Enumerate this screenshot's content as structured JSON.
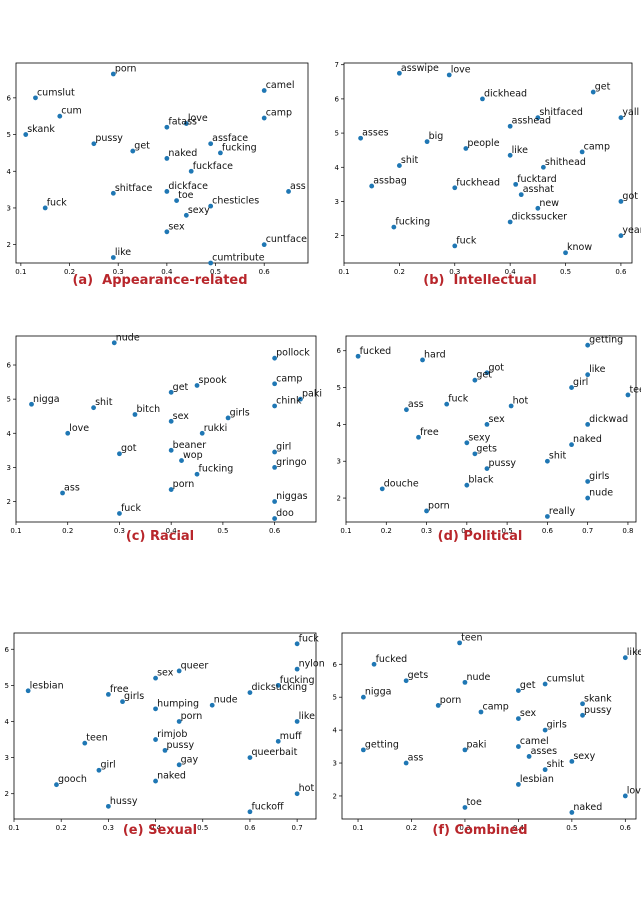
{
  "colors": {
    "point": "#1f77b4",
    "caption": "#b8262b"
  },
  "chart_data": [
    {
      "type": "scatter",
      "caption": "(a)  Appearance-related",
      "xlim": [
        0.09,
        0.69
      ],
      "ylim": [
        1.5,
        6.95
      ],
      "xticks": [
        "0.1",
        "0.2",
        "0.3",
        "0.4",
        "0.5",
        "0.6"
      ],
      "xtick_values": [
        0.1,
        0.2,
        0.3,
        0.4,
        0.5,
        0.6
      ],
      "yticks": [
        "2",
        "3",
        "4",
        "5",
        "6"
      ],
      "ytick_values": [
        2,
        3,
        4,
        5,
        6
      ],
      "points": [
        {
          "x": 0.29,
          "y": 6.65,
          "label": "porn"
        },
        {
          "x": 0.13,
          "y": 6.0,
          "label": "cumslut"
        },
        {
          "x": 0.6,
          "y": 6.2,
          "label": "camel"
        },
        {
          "x": 0.18,
          "y": 5.5,
          "label": "cum"
        },
        {
          "x": 0.6,
          "y": 5.45,
          "label": "camp"
        },
        {
          "x": 0.44,
          "y": 5.3,
          "label": "love"
        },
        {
          "x": 0.4,
          "y": 5.2,
          "label": "fatass"
        },
        {
          "x": 0.11,
          "y": 5.0,
          "label": "skank"
        },
        {
          "x": 0.25,
          "y": 4.75,
          "label": "pussy"
        },
        {
          "x": 0.49,
          "y": 4.75,
          "label": "assface"
        },
        {
          "x": 0.33,
          "y": 4.55,
          "label": "get"
        },
        {
          "x": 0.51,
          "y": 4.5,
          "label": "fucking"
        },
        {
          "x": 0.4,
          "y": 4.35,
          "label": "naked"
        },
        {
          "x": 0.45,
          "y": 4.0,
          "label": "fuckface"
        },
        {
          "x": 0.4,
          "y": 3.45,
          "label": "dickface"
        },
        {
          "x": 0.29,
          "y": 3.4,
          "label": "shitface"
        },
        {
          "x": 0.65,
          "y": 3.45,
          "label": "ass"
        },
        {
          "x": 0.42,
          "y": 3.2,
          "label": "toe"
        },
        {
          "x": 0.49,
          "y": 3.05,
          "label": "chesticles"
        },
        {
          "x": 0.15,
          "y": 3.0,
          "label": "fuck"
        },
        {
          "x": 0.44,
          "y": 2.8,
          "label": "sexy"
        },
        {
          "x": 0.4,
          "y": 2.35,
          "label": "sex"
        },
        {
          "x": 0.6,
          "y": 2.0,
          "label": "cuntface"
        },
        {
          "x": 0.29,
          "y": 1.65,
          "label": "like"
        },
        {
          "x": 0.49,
          "y": 1.5,
          "label": "cumtribute"
        }
      ]
    },
    {
      "type": "scatter",
      "caption": "(b)  Intellectual",
      "xlim": [
        0.1,
        0.62
      ],
      "ylim": [
        1.2,
        7.05
      ],
      "xticks": [
        "0.1",
        "0.2",
        "0.3",
        "0.4",
        "0.5",
        "0.6"
      ],
      "xtick_values": [
        0.1,
        0.2,
        0.3,
        0.4,
        0.5,
        0.6
      ],
      "yticks": [
        "2",
        "3",
        "4",
        "5",
        "6",
        "7"
      ],
      "ytick_values": [
        2,
        3,
        4,
        5,
        6,
        7
      ],
      "points": [
        {
          "x": 0.2,
          "y": 6.75,
          "label": "asswipe"
        },
        {
          "x": 0.29,
          "y": 6.7,
          "label": "love"
        },
        {
          "x": 0.35,
          "y": 6.0,
          "label": "dickhead"
        },
        {
          "x": 0.55,
          "y": 6.2,
          "label": "get"
        },
        {
          "x": 0.45,
          "y": 5.45,
          "label": "shitfaced"
        },
        {
          "x": 0.6,
          "y": 5.45,
          "label": "yall"
        },
        {
          "x": 0.4,
          "y": 5.2,
          "label": "asshead"
        },
        {
          "x": 0.13,
          "y": 4.85,
          "label": "asses"
        },
        {
          "x": 0.25,
          "y": 4.75,
          "label": "big"
        },
        {
          "x": 0.32,
          "y": 4.55,
          "label": "people"
        },
        {
          "x": 0.4,
          "y": 4.35,
          "label": "like"
        },
        {
          "x": 0.53,
          "y": 4.45,
          "label": "camp"
        },
        {
          "x": 0.2,
          "y": 4.05,
          "label": "shit"
        },
        {
          "x": 0.46,
          "y": 4.0,
          "label": "shithead"
        },
        {
          "x": 0.15,
          "y": 3.45,
          "label": "assbag"
        },
        {
          "x": 0.3,
          "y": 3.4,
          "label": "fuckhead"
        },
        {
          "x": 0.41,
          "y": 3.5,
          "label": "fucktard"
        },
        {
          "x": 0.42,
          "y": 3.2,
          "label": "asshat"
        },
        {
          "x": 0.6,
          "y": 3.0,
          "label": "got"
        },
        {
          "x": 0.45,
          "y": 2.8,
          "label": "new"
        },
        {
          "x": 0.4,
          "y": 2.4,
          "label": "dickssucker"
        },
        {
          "x": 0.19,
          "y": 2.25,
          "label": "fucking"
        },
        {
          "x": 0.6,
          "y": 2.0,
          "label": "year"
        },
        {
          "x": 0.3,
          "y": 1.7,
          "label": "fuck"
        },
        {
          "x": 0.5,
          "y": 1.5,
          "label": "know"
        }
      ]
    },
    {
      "type": "scatter",
      "caption": "(c) Racial",
      "xlim": [
        0.1,
        0.68
      ],
      "ylim": [
        1.4,
        6.85
      ],
      "xticks": [
        "0.1",
        "0.2",
        "0.3",
        "0.4",
        "0.5",
        "0.6"
      ],
      "xtick_values": [
        0.1,
        0.2,
        0.3,
        0.4,
        0.5,
        0.6
      ],
      "yticks": [
        "2",
        "3",
        "4",
        "5",
        "6"
      ],
      "ytick_values": [
        2,
        3,
        4,
        5,
        6
      ],
      "points": [
        {
          "x": 0.29,
          "y": 6.65,
          "label": "nude"
        },
        {
          "x": 0.6,
          "y": 6.2,
          "label": "pollock"
        },
        {
          "x": 0.6,
          "y": 5.45,
          "label": "camp"
        },
        {
          "x": 0.45,
          "y": 5.4,
          "label": "spook"
        },
        {
          "x": 0.4,
          "y": 5.2,
          "label": "get"
        },
        {
          "x": 0.65,
          "y": 5.0,
          "label": "paki"
        },
        {
          "x": 0.13,
          "y": 4.85,
          "label": "nigga"
        },
        {
          "x": 0.25,
          "y": 4.75,
          "label": "shit"
        },
        {
          "x": 0.6,
          "y": 4.8,
          "label": "chink"
        },
        {
          "x": 0.33,
          "y": 4.55,
          "label": "bitch"
        },
        {
          "x": 0.51,
          "y": 4.45,
          "label": "girls"
        },
        {
          "x": 0.4,
          "y": 4.35,
          "label": "sex"
        },
        {
          "x": 0.2,
          "y": 4.0,
          "label": "love"
        },
        {
          "x": 0.46,
          "y": 4.0,
          "label": "rukki"
        },
        {
          "x": 0.4,
          "y": 3.5,
          "label": "beaner"
        },
        {
          "x": 0.3,
          "y": 3.4,
          "label": "got"
        },
        {
          "x": 0.6,
          "y": 3.45,
          "label": "girl"
        },
        {
          "x": 0.42,
          "y": 3.2,
          "label": "wop"
        },
        {
          "x": 0.6,
          "y": 3.0,
          "label": "gringo"
        },
        {
          "x": 0.45,
          "y": 2.8,
          "label": "fucking"
        },
        {
          "x": 0.4,
          "y": 2.35,
          "label": "porn"
        },
        {
          "x": 0.19,
          "y": 2.25,
          "label": "ass"
        },
        {
          "x": 0.6,
          "y": 2.0,
          "label": "niggas"
        },
        {
          "x": 0.3,
          "y": 1.65,
          "label": "fuck"
        },
        {
          "x": 0.6,
          "y": 1.5,
          "label": "doo"
        }
      ]
    },
    {
      "type": "scatter",
      "caption": "(d) Political",
      "xlim": [
        0.1,
        0.82
      ],
      "ylim": [
        1.35,
        6.4
      ],
      "xticks": [
        "0.1",
        "0.2",
        "0.3",
        "0.4",
        "0.5",
        "0.6",
        "0.7",
        "0.8"
      ],
      "xtick_values": [
        0.1,
        0.2,
        0.3,
        0.4,
        0.5,
        0.6,
        0.7,
        0.8
      ],
      "yticks": [
        "2",
        "3",
        "4",
        "5",
        "6"
      ],
      "ytick_values": [
        2,
        3,
        4,
        5,
        6
      ],
      "points": [
        {
          "x": 0.7,
          "y": 6.15,
          "label": "getting"
        },
        {
          "x": 0.13,
          "y": 5.85,
          "label": "fucked"
        },
        {
          "x": 0.29,
          "y": 5.75,
          "label": "hard"
        },
        {
          "x": 0.45,
          "y": 5.4,
          "label": "got"
        },
        {
          "x": 0.42,
          "y": 5.2,
          "label": "get"
        },
        {
          "x": 0.7,
          "y": 5.35,
          "label": "like"
        },
        {
          "x": 0.66,
          "y": 5.0,
          "label": "girl"
        },
        {
          "x": 0.8,
          "y": 4.8,
          "label": "teen"
        },
        {
          "x": 0.25,
          "y": 4.4,
          "label": "ass"
        },
        {
          "x": 0.35,
          "y": 4.55,
          "label": "fuck"
        },
        {
          "x": 0.51,
          "y": 4.5,
          "label": "hot"
        },
        {
          "x": 0.45,
          "y": 4.0,
          "label": "sex"
        },
        {
          "x": 0.7,
          "y": 4.0,
          "label": "dickwad"
        },
        {
          "x": 0.28,
          "y": 3.65,
          "label": "free"
        },
        {
          "x": 0.4,
          "y": 3.5,
          "label": "sexy"
        },
        {
          "x": 0.66,
          "y": 3.45,
          "label": "naked"
        },
        {
          "x": 0.42,
          "y": 3.2,
          "label": "gets"
        },
        {
          "x": 0.6,
          "y": 3.0,
          "label": "shit"
        },
        {
          "x": 0.45,
          "y": 2.8,
          "label": "pussy"
        },
        {
          "x": 0.7,
          "y": 2.45,
          "label": "girls"
        },
        {
          "x": 0.4,
          "y": 2.35,
          "label": "black"
        },
        {
          "x": 0.19,
          "y": 2.25,
          "label": "douche"
        },
        {
          "x": 0.7,
          "y": 2.0,
          "label": "nude"
        },
        {
          "x": 0.3,
          "y": 1.65,
          "label": "porn"
        },
        {
          "x": 0.6,
          "y": 1.5,
          "label": "really"
        }
      ]
    },
    {
      "type": "scatter",
      "caption": "(e) Sexual",
      "xlim": [
        0.1,
        0.74
      ],
      "ylim": [
        1.3,
        6.45
      ],
      "xticks": [
        "0.1",
        "0.2",
        "0.3",
        "0.4",
        "0.5",
        "0.6",
        "0.7"
      ],
      "xtick_values": [
        0.1,
        0.2,
        0.3,
        0.4,
        0.5,
        0.6,
        0.7
      ],
      "yticks": [
        "2",
        "3",
        "4",
        "5",
        "6"
      ],
      "ytick_values": [
        2,
        3,
        4,
        5,
        6
      ],
      "points": [
        {
          "x": 0.7,
          "y": 6.15,
          "label": "fuck"
        },
        {
          "x": 0.7,
          "y": 5.45,
          "label": "nylon"
        },
        {
          "x": 0.45,
          "y": 5.4,
          "label": "queer"
        },
        {
          "x": 0.4,
          "y": 5.2,
          "label": "sex"
        },
        {
          "x": 0.66,
          "y": 5.0,
          "label": "fucking"
        },
        {
          "x": 0.13,
          "y": 4.85,
          "label": "lesbian"
        },
        {
          "x": 0.3,
          "y": 4.75,
          "label": "free"
        },
        {
          "x": 0.6,
          "y": 4.8,
          "label": "dicksucking"
        },
        {
          "x": 0.33,
          "y": 4.55,
          "label": "girls"
        },
        {
          "x": 0.52,
          "y": 4.45,
          "label": "nude"
        },
        {
          "x": 0.4,
          "y": 4.35,
          "label": "humping"
        },
        {
          "x": 0.45,
          "y": 4.0,
          "label": "porn"
        },
        {
          "x": 0.7,
          "y": 4.0,
          "label": "like"
        },
        {
          "x": 0.4,
          "y": 3.5,
          "label": "rimjob"
        },
        {
          "x": 0.25,
          "y": 3.4,
          "label": "teen"
        },
        {
          "x": 0.66,
          "y": 3.45,
          "label": "muff"
        },
        {
          "x": 0.42,
          "y": 3.2,
          "label": "pussy"
        },
        {
          "x": 0.6,
          "y": 3.0,
          "label": "queerbait"
        },
        {
          "x": 0.45,
          "y": 2.8,
          "label": "gay"
        },
        {
          "x": 0.28,
          "y": 2.65,
          "label": "girl"
        },
        {
          "x": 0.4,
          "y": 2.35,
          "label": "naked"
        },
        {
          "x": 0.19,
          "y": 2.25,
          "label": "gooch"
        },
        {
          "x": 0.7,
          "y": 2.0,
          "label": "hot"
        },
        {
          "x": 0.3,
          "y": 1.65,
          "label": "hussy"
        },
        {
          "x": 0.6,
          "y": 1.5,
          "label": "fuckoff"
        }
      ]
    },
    {
      "type": "scatter",
      "caption": "(f) Combined",
      "xlim": [
        0.07,
        0.62
      ],
      "ylim": [
        1.3,
        6.95
      ],
      "xticks": [
        "0.1",
        "0.2",
        "0.3",
        "0.4",
        "0.5",
        "0.6"
      ],
      "xtick_values": [
        0.1,
        0.2,
        0.3,
        0.4,
        0.5,
        0.6
      ],
      "yticks": [
        "2",
        "3",
        "4",
        "5",
        "6"
      ],
      "ytick_values": [
        2,
        3,
        4,
        5,
        6
      ],
      "points": [
        {
          "x": 0.29,
          "y": 6.65,
          "label": "teen"
        },
        {
          "x": 0.6,
          "y": 6.2,
          "label": "like"
        },
        {
          "x": 0.13,
          "y": 6.0,
          "label": "fucked"
        },
        {
          "x": 0.19,
          "y": 5.5,
          "label": "gets"
        },
        {
          "x": 0.3,
          "y": 5.45,
          "label": "nude"
        },
        {
          "x": 0.45,
          "y": 5.4,
          "label": "cumslut"
        },
        {
          "x": 0.4,
          "y": 5.2,
          "label": "get"
        },
        {
          "x": 0.11,
          "y": 5.0,
          "label": "nigga"
        },
        {
          "x": 0.25,
          "y": 4.75,
          "label": "porn"
        },
        {
          "x": 0.52,
          "y": 4.8,
          "label": "skank"
        },
        {
          "x": 0.33,
          "y": 4.55,
          "label": "camp"
        },
        {
          "x": 0.52,
          "y": 4.45,
          "label": "pussy"
        },
        {
          "x": 0.4,
          "y": 4.35,
          "label": "sex"
        },
        {
          "x": 0.45,
          "y": 4.0,
          "label": "girls"
        },
        {
          "x": 0.4,
          "y": 3.5,
          "label": "camel"
        },
        {
          "x": 0.11,
          "y": 3.4,
          "label": "getting"
        },
        {
          "x": 0.3,
          "y": 3.4,
          "label": "paki"
        },
        {
          "x": 0.42,
          "y": 3.2,
          "label": "asses"
        },
        {
          "x": 0.5,
          "y": 3.05,
          "label": "sexy"
        },
        {
          "x": 0.19,
          "y": 3.0,
          "label": "ass"
        },
        {
          "x": 0.45,
          "y": 2.8,
          "label": "shit"
        },
        {
          "x": 0.4,
          "y": 2.35,
          "label": "lesbian"
        },
        {
          "x": 0.6,
          "y": 2.0,
          "label": "love"
        },
        {
          "x": 0.3,
          "y": 1.65,
          "label": "toe"
        },
        {
          "x": 0.5,
          "y": 1.5,
          "label": "naked"
        }
      ]
    }
  ]
}
